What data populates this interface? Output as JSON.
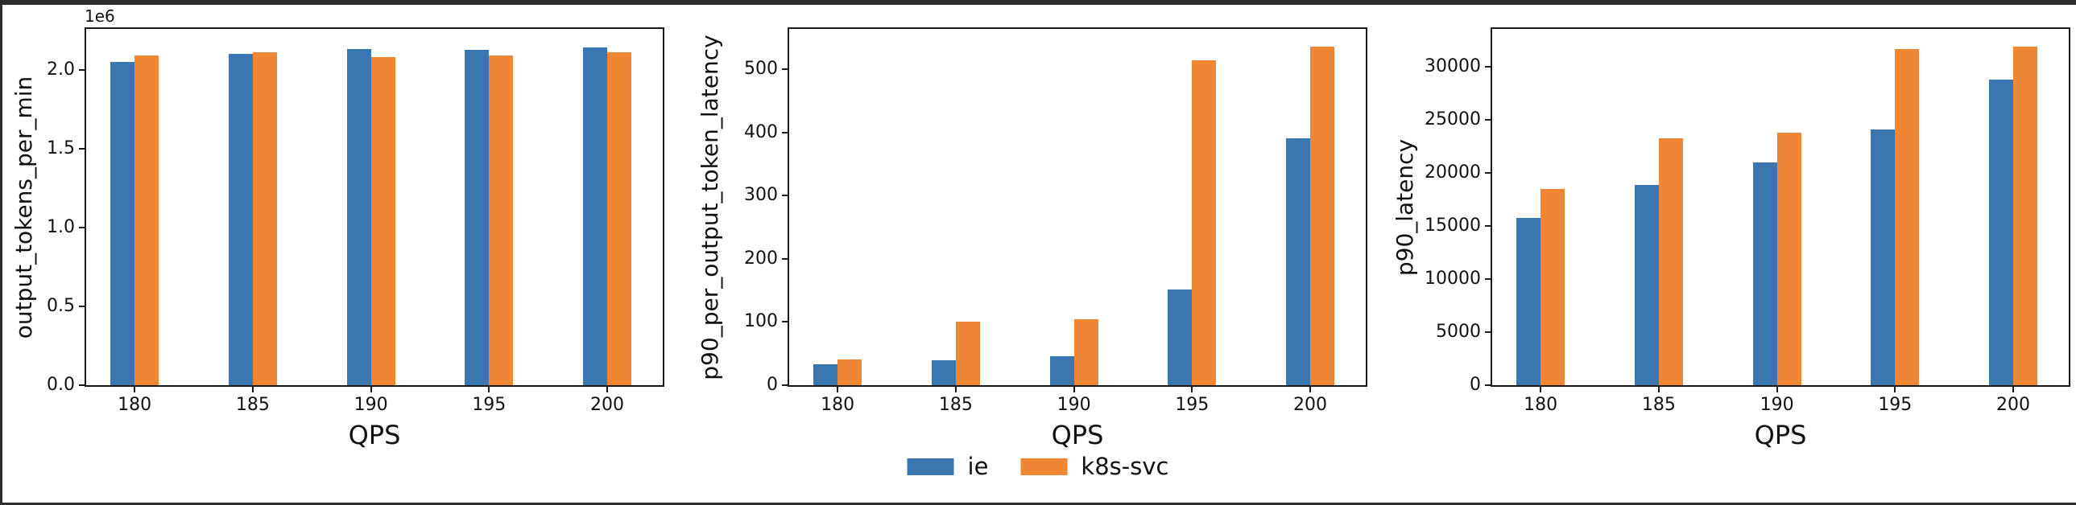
{
  "figure": {
    "background": "#ffffff",
    "frame_color": "#2d2d2d"
  },
  "colors": {
    "series": [
      "#3a76b0",
      "#ee8634"
    ],
    "spine": "#1a1a1a",
    "text": "#111111"
  },
  "legend": {
    "position": "bottom-center",
    "entries": [
      {
        "label": "ie",
        "color": "#3a76b0"
      },
      {
        "label": "k8s-svc",
        "color": "#ee8634"
      }
    ]
  },
  "chart_data": [
    {
      "type": "bar",
      "title": "",
      "ylabel": "output_tokens_per_min",
      "xlabel": "QPS",
      "offset_text": "1e6",
      "grid": false,
      "categories": [
        "180",
        "185",
        "190",
        "195",
        "200"
      ],
      "series": [
        {
          "name": "ie",
          "values": [
            2050000,
            2100000,
            2135000,
            2125000,
            2145000
          ]
        },
        {
          "name": "k8s-svc",
          "values": [
            2090000,
            2110000,
            2080000,
            2090000,
            2110000
          ]
        }
      ],
      "ylim": [
        0,
        2260000
      ],
      "xlim": [
        -0.41,
        4.47
      ],
      "yticks": [
        {
          "value": 0,
          "label": "0.0"
        },
        {
          "value": 500000,
          "label": "0.5"
        },
        {
          "value": 1000000,
          "label": "1.0"
        },
        {
          "value": 1500000,
          "label": "1.5"
        },
        {
          "value": 2000000,
          "label": "2.0"
        }
      ]
    },
    {
      "type": "bar",
      "title": "",
      "ylabel": "p90_per_output_token_latency",
      "xlabel": "QPS",
      "grid": false,
      "categories": [
        "180",
        "185",
        "190",
        "195",
        "200"
      ],
      "series": [
        {
          "name": "ie",
          "values": [
            33,
            40,
            46,
            151,
            391
          ]
        },
        {
          "name": "k8s-svc",
          "values": [
            41,
            101,
            105,
            514,
            536
          ]
        }
      ],
      "ylim": [
        0,
        564
      ],
      "xlim": [
        -0.41,
        4.47
      ],
      "yticks": [
        {
          "value": 0,
          "label": "0"
        },
        {
          "value": 100,
          "label": "100"
        },
        {
          "value": 200,
          "label": "200"
        },
        {
          "value": 300,
          "label": "300"
        },
        {
          "value": 400,
          "label": "400"
        },
        {
          "value": 500,
          "label": "500"
        }
      ]
    },
    {
      "type": "bar",
      "title": "",
      "ylabel": "p90_latency",
      "xlabel": "QPS",
      "grid": false,
      "categories": [
        "180",
        "185",
        "190",
        "195",
        "200"
      ],
      "series": [
        {
          "name": "ie",
          "values": [
            15800,
            18900,
            21000,
            24150,
            28800
          ]
        },
        {
          "name": "k8s-svc",
          "values": [
            18500,
            23300,
            23850,
            31700,
            31950
          ]
        }
      ],
      "ylim": [
        0,
        33600
      ],
      "xlim": [
        -0.41,
        4.47
      ],
      "yticks": [
        {
          "value": 0,
          "label": "0"
        },
        {
          "value": 5000,
          "label": "5000"
        },
        {
          "value": 10000,
          "label": "10000"
        },
        {
          "value": 15000,
          "label": "15000"
        },
        {
          "value": 20000,
          "label": "20000"
        },
        {
          "value": 25000,
          "label": "25000"
        },
        {
          "value": 30000,
          "label": "30000"
        }
      ]
    }
  ]
}
